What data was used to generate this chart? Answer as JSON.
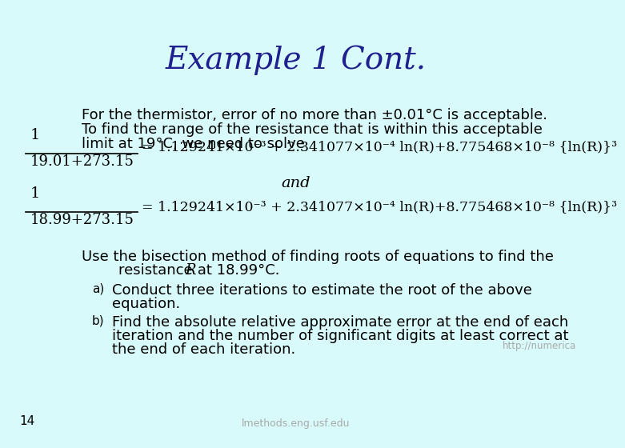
{
  "bg_color": "#d8fafa",
  "title": "Example 1 Cont.",
  "title_color": "#1f1f8f",
  "title_fontsize": 28,
  "body_color": "#000000",
  "slide_number": "14",
  "footer_left": "lmethods.eng.usf.edu",
  "footer_right": "http://numerica",
  "para1_line1": "For the thermistor, error of no more than ±0.01°C is acceptable.",
  "para1_line2": "To find the range of the resistance that is within this acceptable",
  "para1_line3": "limit at 19°C, we need to solve",
  "eq1_num": "1",
  "eq1_denom": "19.01+273.15",
  "eq1_rhs": "= 1.129241×10⁻³ + 2.341077×10⁻⁴ ln(R)+8.775468×10⁻⁸ {ln(R)}³",
  "and_text": "and",
  "eq2_num": "1",
  "eq2_denom": "18.99+273.15",
  "eq2_rhs": "= 1.129241×10⁻³ + 2.341077×10⁻⁴ ln(R)+8.775468×10⁻⁸ {ln(R)}³",
  "bisect_line1": "Use the bisection method of finding roots of equations to find the",
  "bisect_line2a": "        resistance ",
  "bisect_R": "R",
  "bisect_line2b": " at 18.99°C.",
  "item_a_label": "a)",
  "item_a_line1": "Conduct three iterations to estimate the root of the above",
  "item_a_line2": "equation.",
  "item_b_label": "b)",
  "item_b_line1": "Find the absolute relative approximate error at the end of each",
  "item_b_line2": "iteration and the number of significant digits at least correct at",
  "item_b_line3": "the end of each iteration."
}
